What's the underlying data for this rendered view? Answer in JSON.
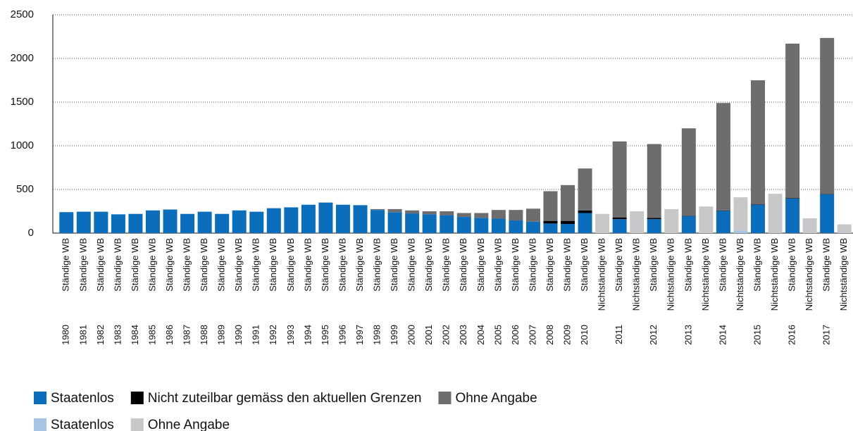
{
  "chart_data": {
    "type": "stacked_bar",
    "categories": [
      "Ständige WB",
      "Ständige WB",
      "Ständige WB",
      "Ständige WB",
      "Ständige WB",
      "Ständige WB",
      "Ständige WB",
      "Ständige WB",
      "Ständige WB",
      "Ständige WB",
      "Ständige WB",
      "Ständige WB",
      "Ständige WB",
      "Ständige WB",
      "Ständige WB",
      "Ständige WB",
      "Ständige WB",
      "Ständige WB",
      "Ständige WB",
      "Ständige WB",
      "Ständige WB",
      "Ständige WB",
      "Ständige WB",
      "Ständige WB",
      "Ständige WB",
      "Ständige WB",
      "Ständige WB",
      "Ständige WB",
      "Ständige WB",
      "Ständige WB",
      "Ständige WB",
      "Nichtständige WB",
      "Ständige WB",
      "Nichtständige WB",
      "Ständige WB",
      "Nichtständige WB",
      "Ständige WB",
      "Nichtständige WB",
      "Ständige WB",
      "Nichtständige WB",
      "Ständige WB",
      "Nichtständige WB",
      "Ständige WB",
      "Nichtständige WB",
      "Ständige WB",
      "Nichtständige WB"
    ],
    "years": [
      "1980",
      "1981",
      "1982",
      "1983",
      "1984",
      "1985",
      "1986",
      "1987",
      "1988",
      "1989",
      "1990",
      "1991",
      "1992",
      "1993",
      "1994",
      "1995",
      "1996",
      "1997",
      "1998",
      "1999",
      "2000",
      "2001",
      "2002",
      "2003",
      "2004",
      "2005",
      "2006",
      "2007",
      "2008",
      "2009",
      "2010",
      null,
      "2011",
      null,
      "2012",
      null,
      "2013",
      null,
      "2014",
      null,
      "2015",
      null,
      "2016",
      null,
      "2017",
      null
    ],
    "series": [
      {
        "name": "Staatenlos",
        "color": "#0a6ebd",
        "values": [
          240,
          245,
          245,
          215,
          220,
          260,
          270,
          220,
          245,
          220,
          260,
          245,
          285,
          295,
          325,
          350,
          325,
          320,
          265,
          240,
          225,
          215,
          205,
          185,
          175,
          165,
          145,
          130,
          110,
          105,
          230,
          null,
          160,
          null,
          160,
          null,
          195,
          null,
          255,
          null,
          325,
          null,
          395,
          null,
          445,
          null
        ]
      },
      {
        "name": "Nicht zuteilbar gemäss den aktuellen Grenzen",
        "color": "#000000",
        "values": [
          null,
          null,
          null,
          null,
          null,
          null,
          null,
          null,
          null,
          null,
          null,
          null,
          null,
          null,
          null,
          null,
          null,
          null,
          null,
          null,
          null,
          null,
          null,
          null,
          null,
          null,
          null,
          null,
          30,
          35,
          30,
          null,
          20,
          null,
          15,
          null,
          5,
          null,
          5,
          null,
          5,
          null,
          5,
          null,
          5,
          null
        ]
      },
      {
        "name": "Ohne Angabe",
        "color": "#6d6d70",
        "values": [
          null,
          null,
          null,
          null,
          null,
          null,
          null,
          null,
          null,
          null,
          null,
          null,
          null,
          null,
          null,
          null,
          null,
          null,
          10,
          35,
          35,
          35,
          45,
          45,
          55,
          100,
          120,
          150,
          340,
          410,
          480,
          null,
          870,
          null,
          845,
          null,
          1000,
          null,
          1230,
          null,
          1420,
          null,
          1770,
          null,
          1785,
          null
        ]
      },
      {
        "name": "Staatenlos",
        "color": "#a7c3e6",
        "values": [
          null,
          null,
          null,
          null,
          null,
          null,
          null,
          null,
          null,
          null,
          null,
          null,
          null,
          null,
          null,
          null,
          null,
          null,
          null,
          null,
          null,
          null,
          null,
          null,
          null,
          null,
          null,
          null,
          null,
          null,
          null,
          null,
          null,
          null,
          null,
          null,
          null,
          null,
          null,
          30,
          null,
          null,
          null,
          null,
          null,
          null
        ]
      },
      {
        "name": "Ohne Angabe",
        "color": "#c8c8ca",
        "values": [
          null,
          null,
          null,
          null,
          null,
          null,
          null,
          null,
          null,
          null,
          null,
          null,
          null,
          null,
          null,
          null,
          null,
          null,
          null,
          null,
          null,
          null,
          null,
          null,
          null,
          null,
          null,
          null,
          null,
          null,
          null,
          220,
          null,
          250,
          null,
          275,
          null,
          305,
          null,
          380,
          null,
          450,
          null,
          170,
          null,
          100
        ]
      }
    ],
    "ylim": [
      0,
      2500
    ],
    "yticks": [
      0,
      500,
      1000,
      1500,
      2000,
      2500
    ],
    "grid": true
  }
}
